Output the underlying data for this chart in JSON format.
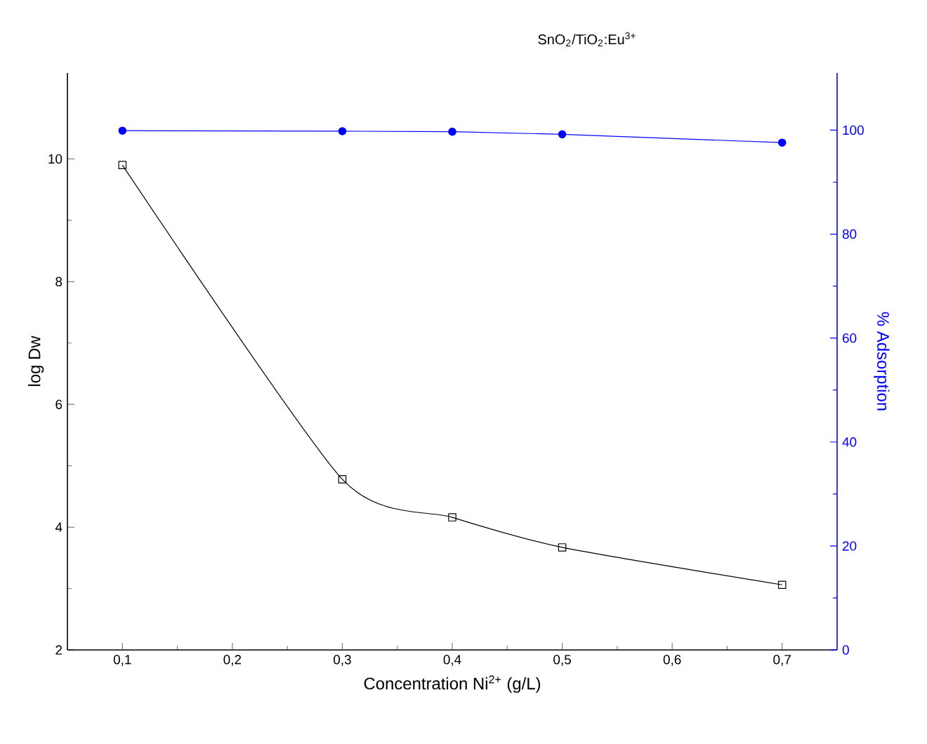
{
  "chart_data": {
    "type": "line",
    "title": "SnO$_{2}$/TiO$_{2}$:Eu$^{3+}$",
    "xlabel": "Concentration Ni$^{2+}$ (g/L)",
    "ylabel": "log Dw",
    "y2label": "% Adsorption",
    "x": [
      0.1,
      0.3,
      0.4,
      0.5,
      0.7
    ],
    "series": [
      {
        "color": "#000000",
        "marker": "square",
        "values": [
          9.9,
          4.78,
          4.16,
          3.67,
          3.06
        ]
      },
      {
        "color": "#0000ff",
        "marker": "circle",
        "axis": "y2",
        "values": [
          99.9,
          99.8,
          99.7,
          99.2,
          97.6
        ]
      }
    ],
    "xlim": [
      0.05,
      0.75
    ],
    "xticks": [
      {
        "value": 0.1,
        "label": "0,1"
      },
      {
        "value": 0.2,
        "label": "0,2"
      },
      {
        "value": 0.3,
        "label": "0,3"
      },
      {
        "value": 0.4,
        "label": "0,4"
      },
      {
        "value": 0.5,
        "label": "0,5"
      },
      {
        "value": 0.6,
        "label": "0,6"
      },
      {
        "value": 0.7,
        "label": "0,7"
      }
    ],
    "ylim": [
      2,
      11.4
    ],
    "yticks": [
      2,
      4,
      6,
      8,
      10
    ],
    "y2lim": [
      0,
      111
    ],
    "y2ticks": [
      0,
      20,
      40,
      60,
      80,
      100
    ],
    "grid": false
  }
}
